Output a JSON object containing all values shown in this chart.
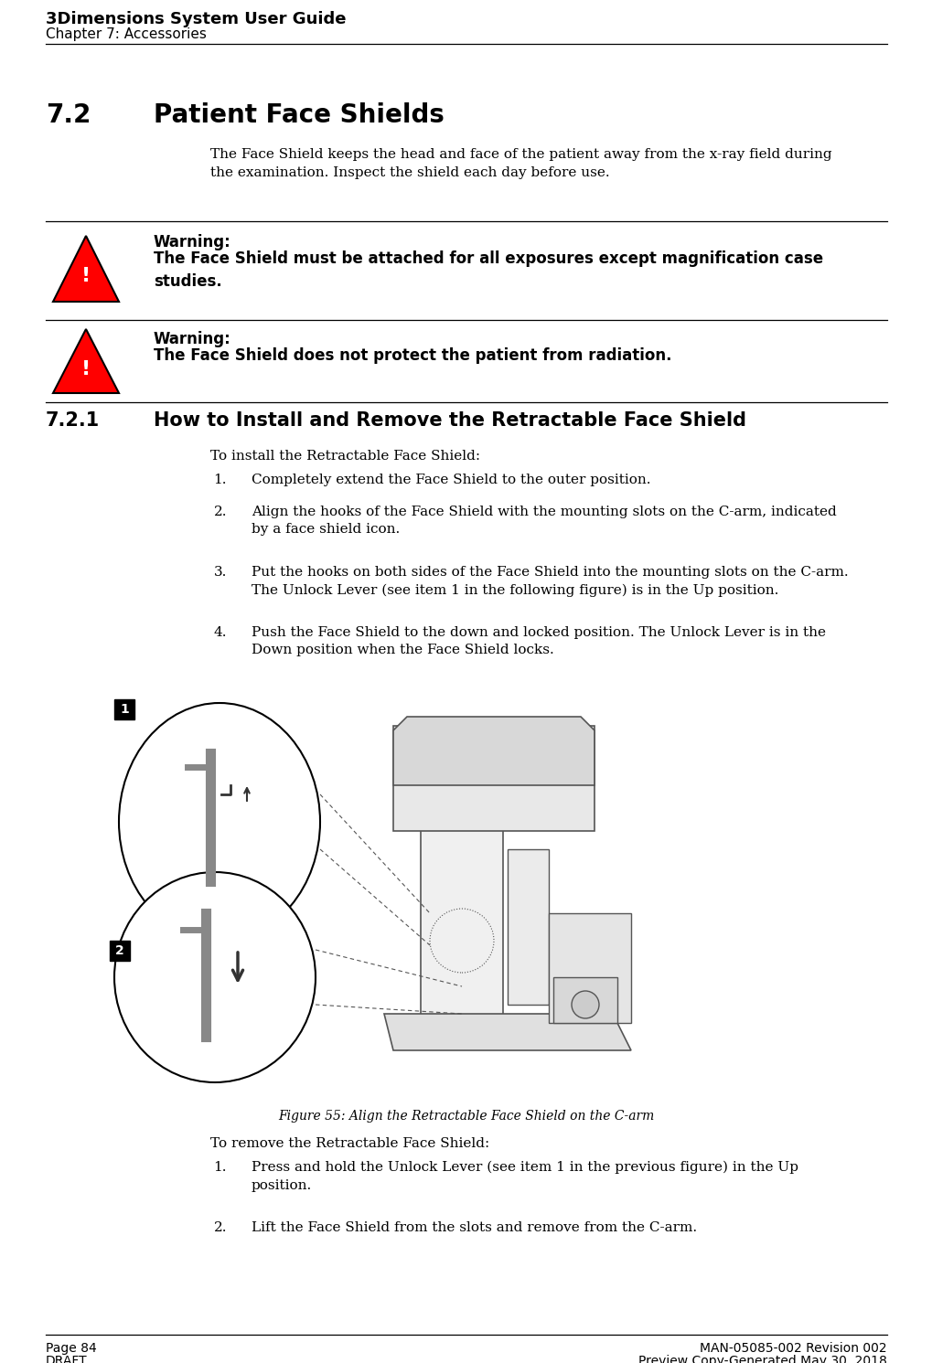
{
  "bg_color": "#ffffff",
  "header_title": "3Dimensions System User Guide",
  "header_subtitle": "Chapter 7: Accessories",
  "footer_left_line1": "Page 84",
  "footer_left_line2": "DRAFT",
  "footer_right_line1": "MAN-05085-002 Revision 002",
  "footer_right_line2": "Preview Copy-Generated May 30, 2018",
  "section_number": "7.2",
  "section_title": "Patient Face Shields",
  "body_text1": "The Face Shield keeps the head and face of the patient away from the x-ray field during\nthe examination. Inspect the shield each day before use.",
  "warning1_label": "Warning:",
  "warning1_text": "The Face Shield must be attached for all exposures except magnification case\nstudies.",
  "warning2_label": "Warning:",
  "warning2_text": "The Face Shield does not protect the patient from radiation.",
  "subsection_number": "7.2.1",
  "subsection_title": "How to Install and Remove the Retractable Face Shield",
  "install_intro": "To install the Retractable Face Shield:",
  "install_steps": [
    "Completely extend the Face Shield to the outer position.",
    "Align the hooks of the Face Shield with the mounting slots on the C-arm, indicated\nby a face shield icon.",
    "Put the hooks on both sides of the Face Shield into the mounting slots on the C-arm.\nThe Unlock Lever (see item 1 in the following figure) is in the Up position.",
    "Push the Face Shield to the down and locked position. The Unlock Lever is in the\nDown position when the Face Shield locks."
  ],
  "figure_caption": "Figure 55: Align the Retractable Face Shield on the C-arm",
  "remove_intro": "To remove the Retractable Face Shield:",
  "remove_steps": [
    "Press and hold the Unlock Lever (see item 1 in the previous figure) in the Up\nposition.",
    "Lift the Face Shield from the slots and remove from the C-arm."
  ]
}
